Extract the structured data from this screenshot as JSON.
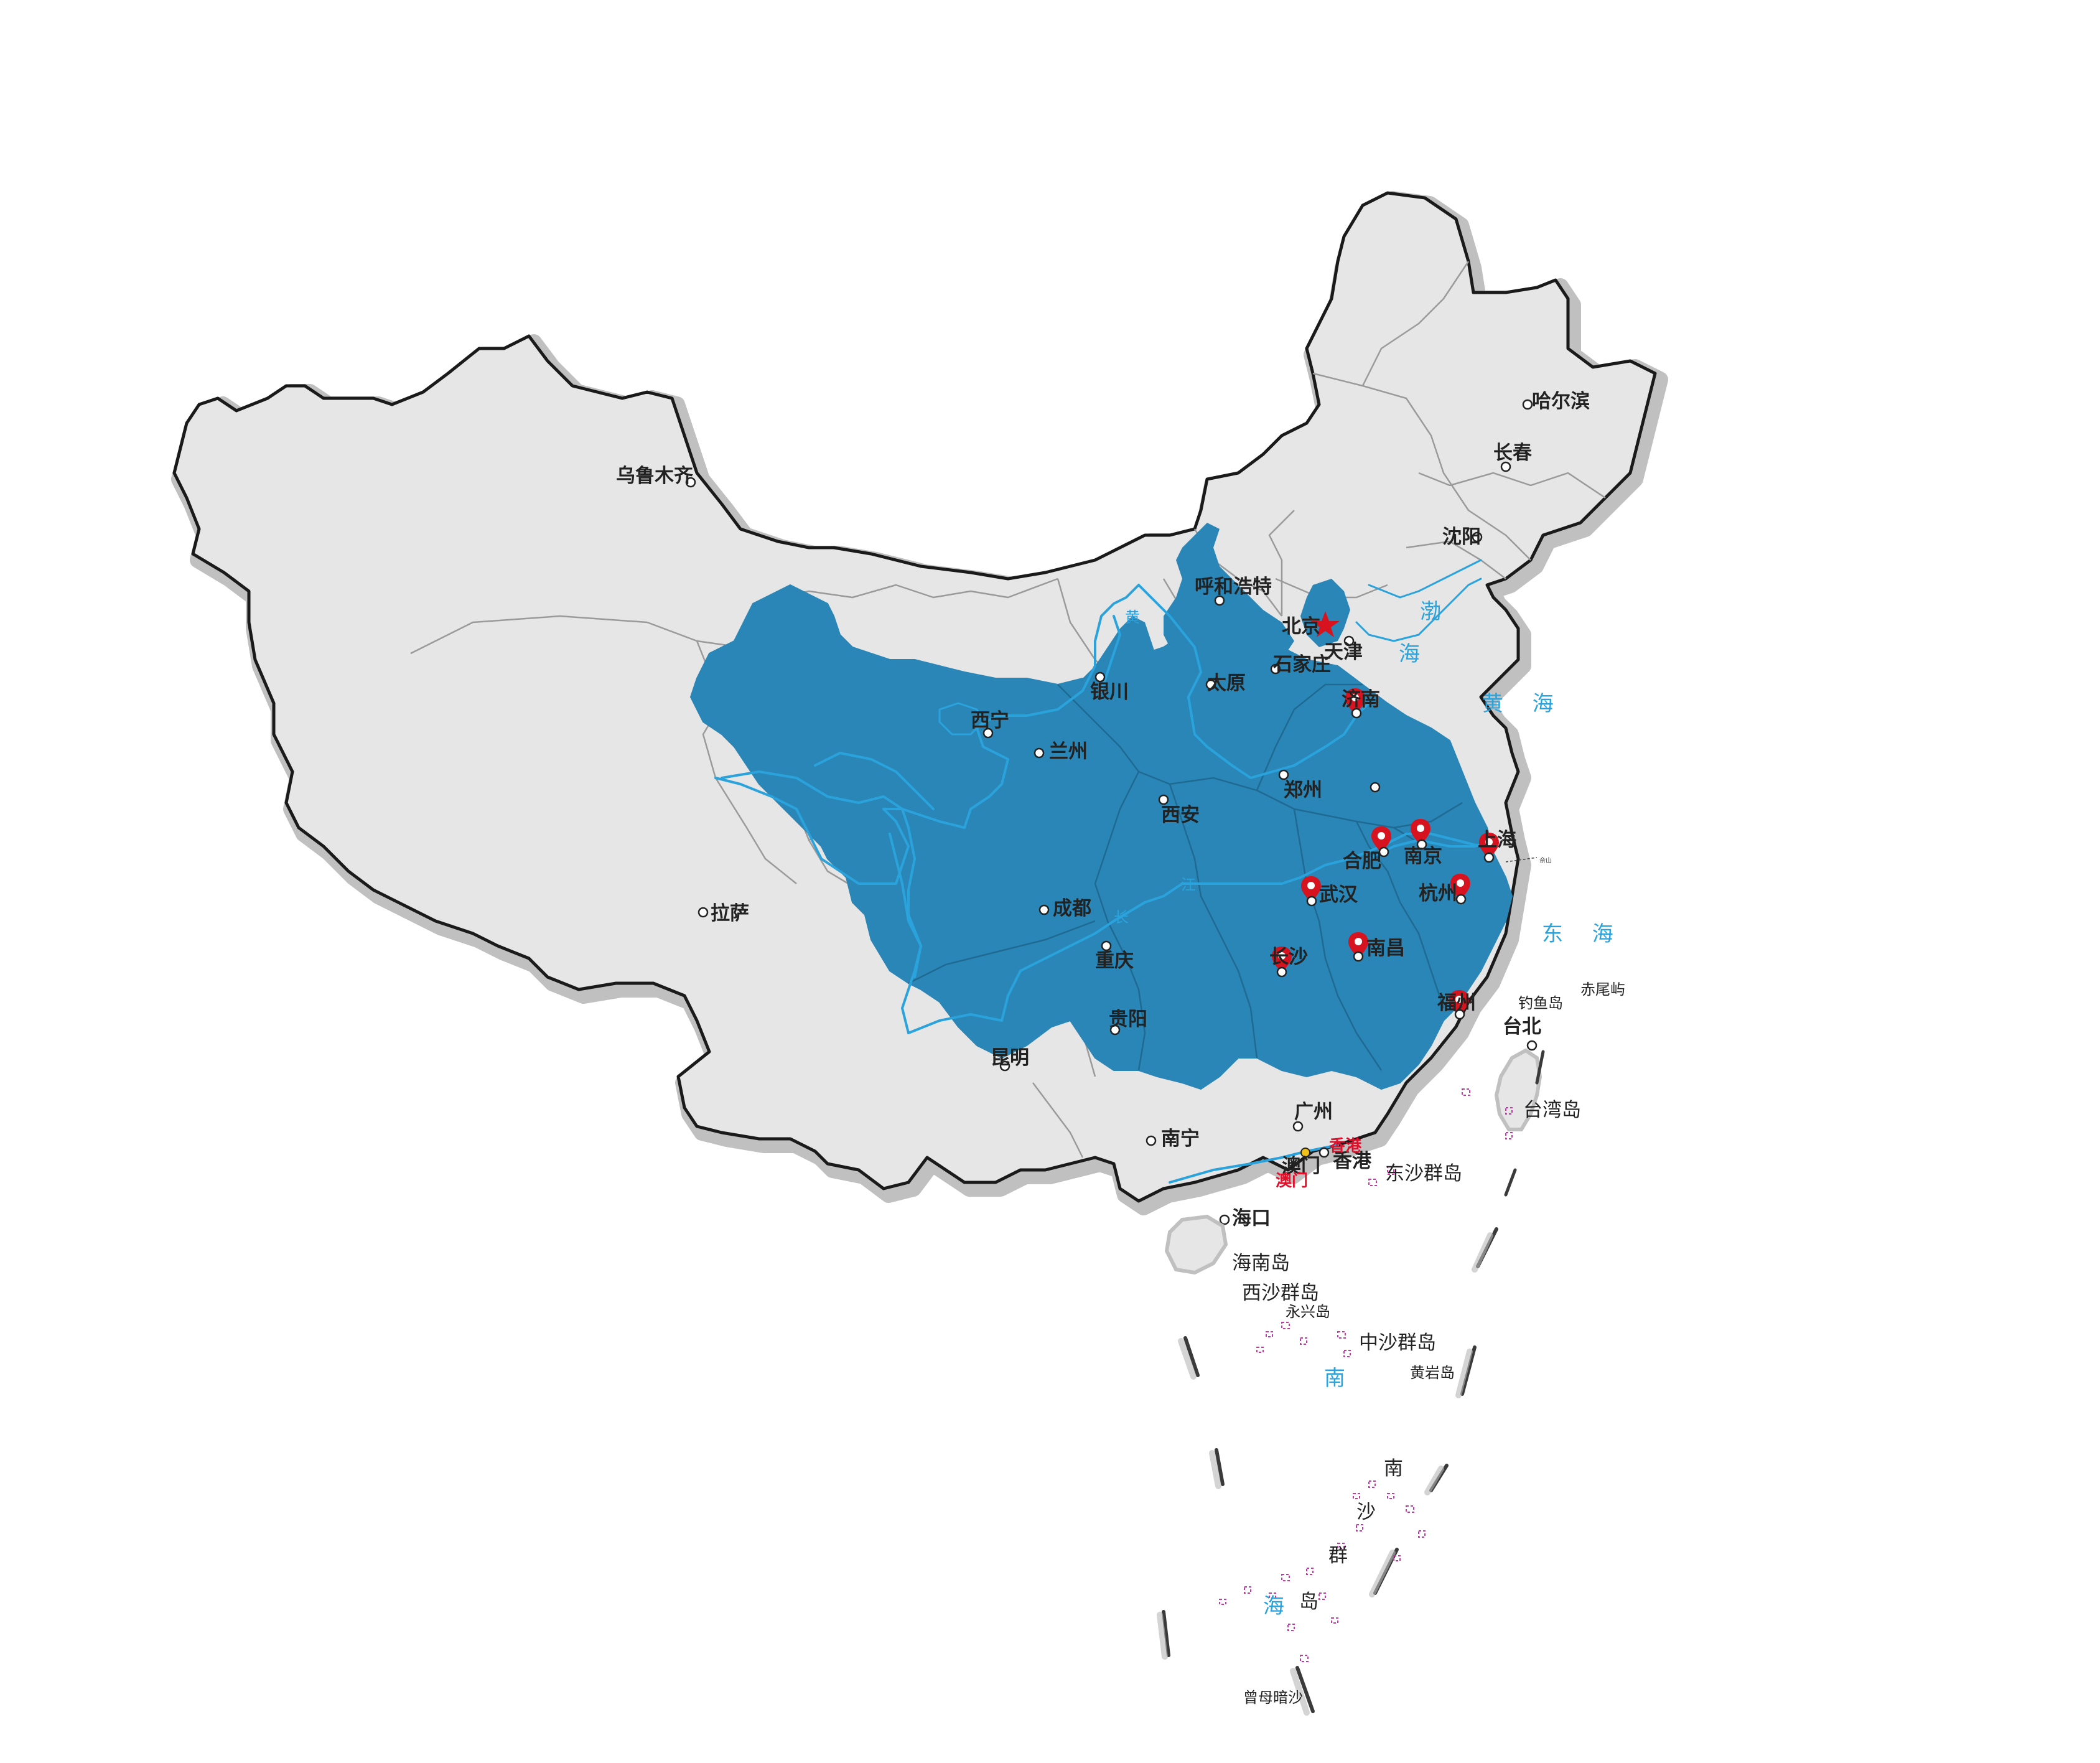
{
  "map": {
    "colors": {
      "land": "#e6e6e6",
      "border": "#1a1a1a",
      "border_shadow": "#b5b5b5",
      "province_line": "#9a9a9a",
      "highlight": "#2a86b6",
      "river": "#2aa3dd",
      "pin": "#d6131f",
      "capital_star": "#d6131f",
      "island_outline": "#c03aa6",
      "dash_line": "#444444"
    },
    "cities": {
      "urumqi": "乌鲁木齐",
      "lhasa": "拉萨",
      "xining": "西宁",
      "lanzhou": "兰州",
      "yinchuan": "银川",
      "hohhot": "呼和浩特",
      "beijing": "北京",
      "tianjin": "天津",
      "shijiazhuang": "石家庄",
      "taiyuan": "太原",
      "jinan": "济南",
      "zhengzhou": "郑州",
      "xian": "西安",
      "chengdu": "成都",
      "chongqing": "重庆",
      "guiyang": "贵阳",
      "kunming": "昆明",
      "nanning": "南宁",
      "guangzhou": "广州",
      "hongkong": "香港",
      "macau": "澳门",
      "haikou": "海口",
      "changsha": "长沙",
      "wuhan": "武汉",
      "nanchang": "南昌",
      "hefei": "合肥",
      "nanjing": "南京",
      "shanghai": "上海",
      "hangzhou": "杭州",
      "fuzhou": "福州",
      "taipei": "台北",
      "harbin": "哈尔滨",
      "changchun": "长春",
      "shenyang": "沈阳"
    },
    "red_labels": {
      "hongkong": "香港",
      "macau": "澳门"
    },
    "islands": {
      "taiwan": "台湾岛",
      "hainan": "海南岛",
      "diaoyu": "钓鱼岛",
      "chiwei": "赤尾屿",
      "dongsha": "东沙群岛",
      "xisha": "西沙群岛",
      "yongxing": "永兴岛",
      "zhongsha": "中沙群岛",
      "huangyan": "黄岩岛",
      "zengmu": "曾母暗沙",
      "nansha": [
        "南",
        "沙",
        "群",
        "岛"
      ],
      "sheshan": "佘山"
    },
    "seas": {
      "bohai": [
        "渤",
        "海"
      ],
      "yellow": "黄 海",
      "east": "东 海",
      "south": [
        "南",
        "海"
      ]
    },
    "rivers": {
      "yellow": "黄",
      "yangtze": [
        "长",
        "江"
      ]
    }
  }
}
